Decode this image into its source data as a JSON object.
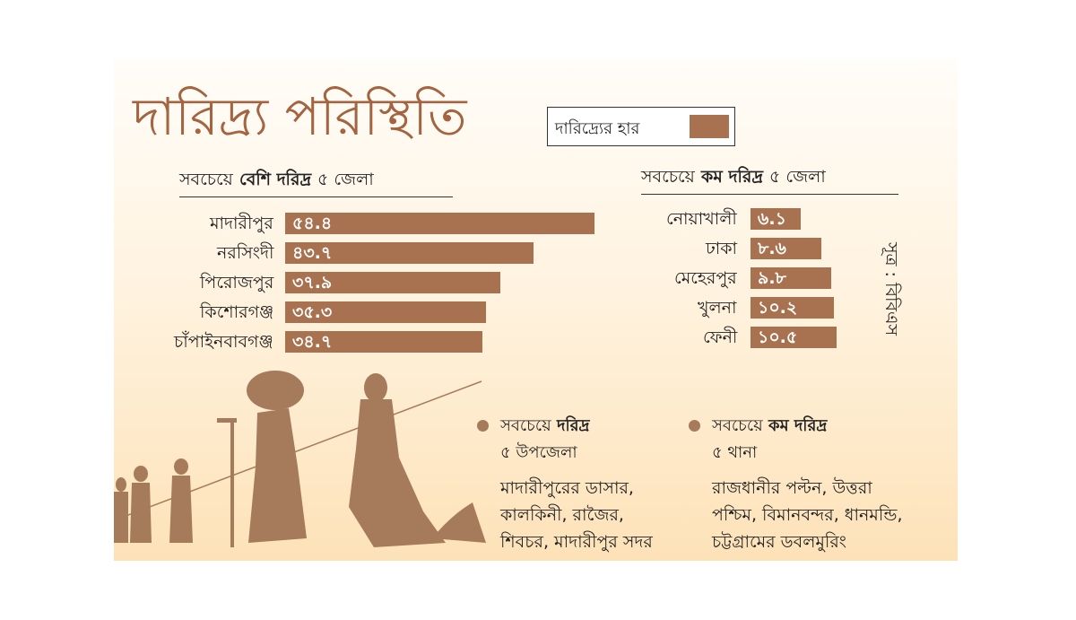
{
  "title": "দারিদ্র্য পরিস্থিতি",
  "legend": {
    "label": "দারিদ্র্যের হার",
    "color": "#a8714f"
  },
  "source": "সূত্র : বিবিএস",
  "chart_data": [
    {
      "type": "bar",
      "orientation": "horizontal",
      "title": [
        "সবচেয়ে",
        "বেশি দরিদ্র",
        "৫ জেলা"
      ],
      "categories": [
        "মাদারীপুর",
        "নরসিংদী",
        "পিরোজপুর",
        "কিশোরগঞ্জ",
        "চাঁপাইনবাবগঞ্জ"
      ],
      "values": [
        54.4,
        43.7,
        37.9,
        35.3,
        34.7
      ],
      "value_labels": [
        "৫৪.৪",
        "৪৩.৭",
        "৩৭.৯",
        "৩৫.৩",
        "৩৪.৭"
      ],
      "color": "#a8714f"
    },
    {
      "type": "bar",
      "orientation": "horizontal",
      "title": [
        "সবচেয়ে",
        "কম দরিদ্র",
        "৫ জেলা"
      ],
      "categories": [
        "নোয়াখালী",
        "ঢাকা",
        "মেহেরপুর",
        "খুলনা",
        "ফেনী"
      ],
      "values": [
        6.1,
        8.6,
        9.8,
        10.2,
        10.5
      ],
      "value_labels": [
        "৬.১",
        "৮.৬",
        "৯.৮",
        "১০.২",
        "১০.৫"
      ],
      "color": "#a8714f"
    }
  ],
  "notes": [
    {
      "heading": [
        "সবচেয়ে",
        "দরিদ্র"
      ],
      "subheading": "৫ উপজেলা",
      "lines": [
        "মাদারীপুরের ডাসার,",
        "কালকিনী, রাজৈর,",
        "শিবচর, মাদারীপুর সদর"
      ]
    },
    {
      "heading": [
        "সবচেয়ে",
        "কম দরিদ্র"
      ],
      "subheading": "৫ থানা",
      "lines": [
        "রাজধানীর পল্টন, উত্তরা",
        "পশ্চিম, বিমানবন্দর, ধানমন্ডি,",
        "চট্টগ্রামের ডবলমুরিং"
      ]
    }
  ]
}
